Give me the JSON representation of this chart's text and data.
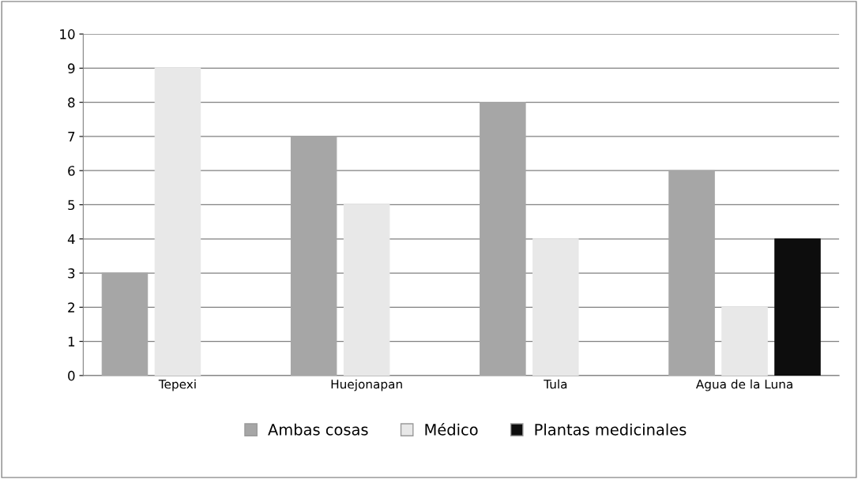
{
  "chart_data": {
    "type": "bar",
    "categories": [
      "Tepexi",
      "Huejonapan",
      "Tula",
      "Agua de la Luna"
    ],
    "series": [
      {
        "name": "Ambas cosas",
        "color": "#a6a6a6",
        "values": [
          3,
          7,
          8,
          6
        ]
      },
      {
        "name": "Médico",
        "color": "#e8e8e8",
        "values": [
          9,
          5,
          4,
          2
        ]
      },
      {
        "name": "Plantas medicinales",
        "color": "#0d0d0d",
        "values": [
          null,
          null,
          null,
          4
        ]
      }
    ],
    "ylim": [
      0,
      10
    ],
    "yticks": [
      0,
      1,
      2,
      3,
      4,
      5,
      6,
      7,
      8,
      9,
      10
    ],
    "grid": "y",
    "legend": "bottom"
  }
}
